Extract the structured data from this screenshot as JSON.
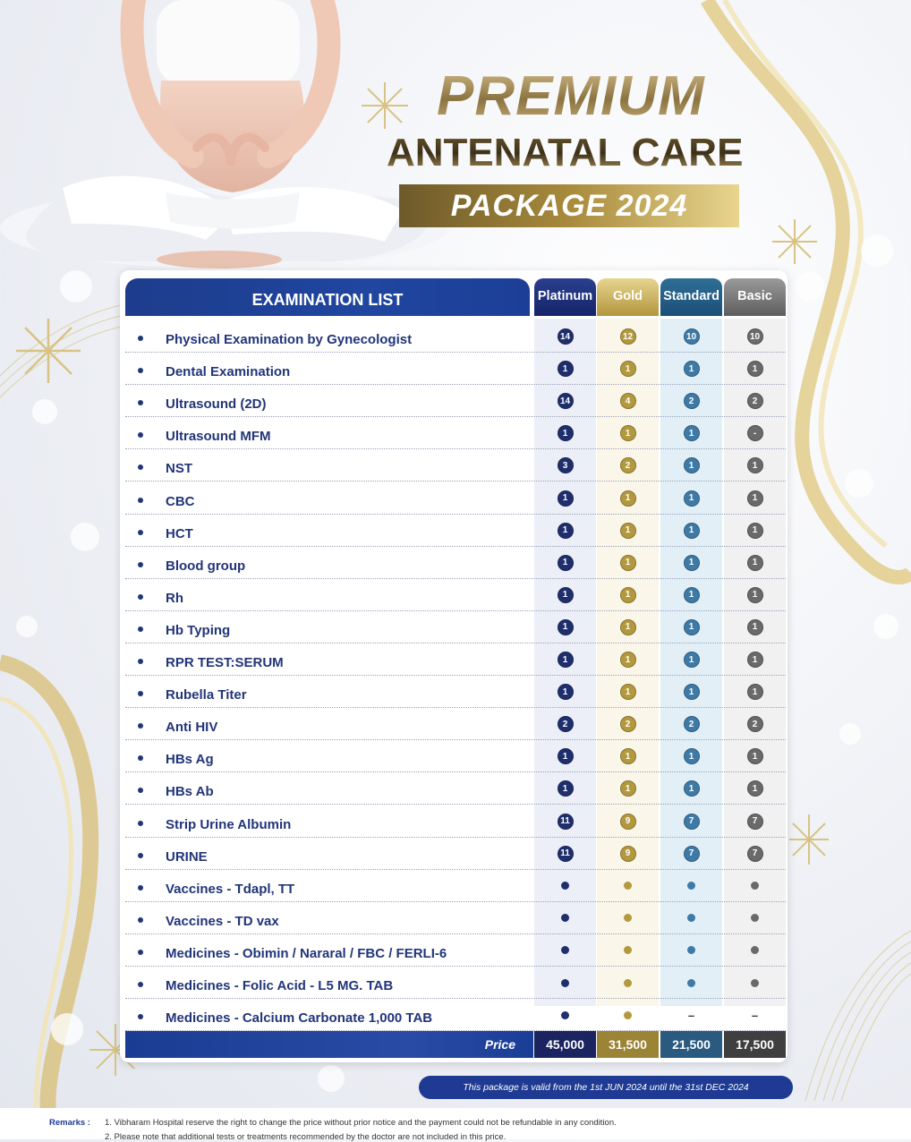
{
  "title": {
    "line1": "PREMIUM",
    "line2": "ANTENATAL CARE",
    "line3": "PACKAGE 2024"
  },
  "table": {
    "list_header": "EXAMINATION LIST",
    "packages": [
      "Platinum",
      "Gold",
      "Standard",
      "Basic"
    ],
    "package_colors": [
      "#1f2f6e",
      "#b3993e",
      "#3f7aa6",
      "#6a6a6a"
    ],
    "rows": [
      {
        "label": "Physical Examination by Gynecologist",
        "values": [
          "14",
          "12",
          "10",
          "10"
        ]
      },
      {
        "label": "Dental Examination",
        "values": [
          "1",
          "1",
          "1",
          "1"
        ]
      },
      {
        "label": "Ultrasound (2D)",
        "values": [
          "14",
          "4",
          "2",
          "2"
        ]
      },
      {
        "label": "Ultrasound MFM",
        "values": [
          "1",
          "1",
          "1",
          "-"
        ]
      },
      {
        "label": "NST",
        "values": [
          "3",
          "2",
          "1",
          "1"
        ]
      },
      {
        "label": "CBC",
        "values": [
          "1",
          "1",
          "1",
          "1"
        ]
      },
      {
        "label": "HCT",
        "values": [
          "1",
          "1",
          "1",
          "1"
        ]
      },
      {
        "label": "Blood group",
        "values": [
          "1",
          "1",
          "1",
          "1"
        ]
      },
      {
        "label": "Rh",
        "values": [
          "1",
          "1",
          "1",
          "1"
        ]
      },
      {
        "label": "Hb Typing",
        "values": [
          "1",
          "1",
          "1",
          "1"
        ]
      },
      {
        "label": "RPR TEST:SERUM",
        "values": [
          "1",
          "1",
          "1",
          "1"
        ]
      },
      {
        "label": "Rubella Titer",
        "values": [
          "1",
          "1",
          "1",
          "1"
        ]
      },
      {
        "label": "Anti HIV",
        "values": [
          "2",
          "2",
          "2",
          "2"
        ]
      },
      {
        "label": "HBs Ag",
        "values": [
          "1",
          "1",
          "1",
          "1"
        ]
      },
      {
        "label": "HBs Ab",
        "values": [
          "1",
          "1",
          "1",
          "1"
        ]
      },
      {
        "label": "Strip Urine Albumin",
        "values": [
          "11",
          "9",
          "7",
          "7"
        ]
      },
      {
        "label": "URINE",
        "values": [
          "11",
          "9",
          "7",
          "7"
        ]
      },
      {
        "label": "Vaccines - Tdapl, TT",
        "values": [
          "dot",
          "dot",
          "dot",
          "dot"
        ]
      },
      {
        "label": "Vaccines - TD vax",
        "values": [
          "dot",
          "dot",
          "dot",
          "dot"
        ]
      },
      {
        "label": "Medicines - Obimin / Nararal / FBC / FERLI-6",
        "values": [
          "dot",
          "dot",
          "dot",
          "dot"
        ]
      },
      {
        "label": "Medicines - Folic Acid - L5 MG. TAB",
        "values": [
          "dot",
          "dot",
          "dot",
          "dot"
        ]
      },
      {
        "label": "Medicines - Calcium Carbonate 1,000 TAB",
        "values": [
          "dot",
          "dot",
          "dash",
          "dash"
        ]
      }
    ],
    "price_label": "Price",
    "prices": [
      "45,000",
      "31,500",
      "21,500",
      "17,500"
    ]
  },
  "validity": "This package is valid  from the 1st JUN 2024  until the 31st DEC 2024",
  "remarks": {
    "label": "Remarks :",
    "items": [
      "1. Vibharam Hospital reserve the right to change the price without prior notice and the payment could not be refundable in any condition.",
      "2. Please note that additional tests or treatments recommended  by the doctor are not included in this price."
    ]
  },
  "dash_glyph": "–"
}
